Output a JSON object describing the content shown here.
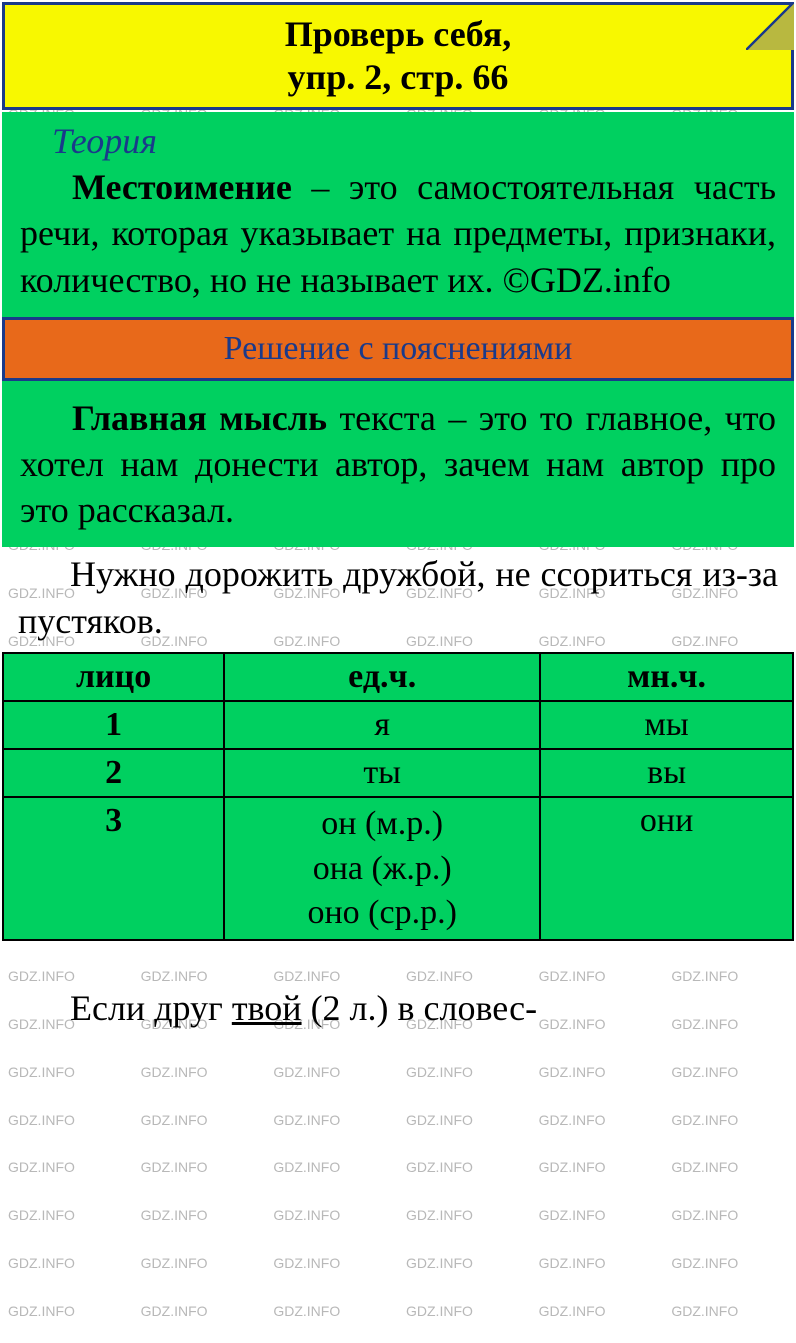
{
  "colors": {
    "header_bg": "#f8f800",
    "border": "#1a3a8a",
    "green_bg": "#00d060",
    "orange_bg": "#e8691a",
    "text": "#000000",
    "watermark": "#b8b8b8"
  },
  "header": {
    "line1": "Проверь себя,",
    "line2": "упр. 2, стр. 66"
  },
  "theory": {
    "label": "Теория",
    "bold_term": "Местоимение",
    "definition": " – это самостоя­тельная часть речи, которая ука­зывает на предметы, признаки, количество, но не называет их. ©GDZ.info"
  },
  "solution_header": "Решение с пояснениями",
  "main_thought": {
    "bold_term": "Главная мысль",
    "text": " текста – это то главное, что хотел нам донести ав­тор, зачем нам автор про это рас­сказал."
  },
  "moral_text": "Нужно дорожить дружбой, не ссориться из-за пустяков.",
  "table": {
    "headers": [
      "лицо",
      "ед.ч.",
      "мн.ч."
    ],
    "rows": [
      {
        "person": "1",
        "singular": "я",
        "plural": "мы"
      },
      {
        "person": "2",
        "singular": "ты",
        "plural": "вы"
      },
      {
        "person": "3",
        "singular_lines": [
          "он (м.р.)",
          "она (ж.р.)",
          "оно (ср.р.)"
        ],
        "plural": "они"
      }
    ]
  },
  "bottom": {
    "prefix": "Если друг ",
    "underlined": "твой",
    "suffix": " (2 л.) в словес-"
  },
  "watermark_text": "GDZ.INFO",
  "footer": "©GDZ.info"
}
